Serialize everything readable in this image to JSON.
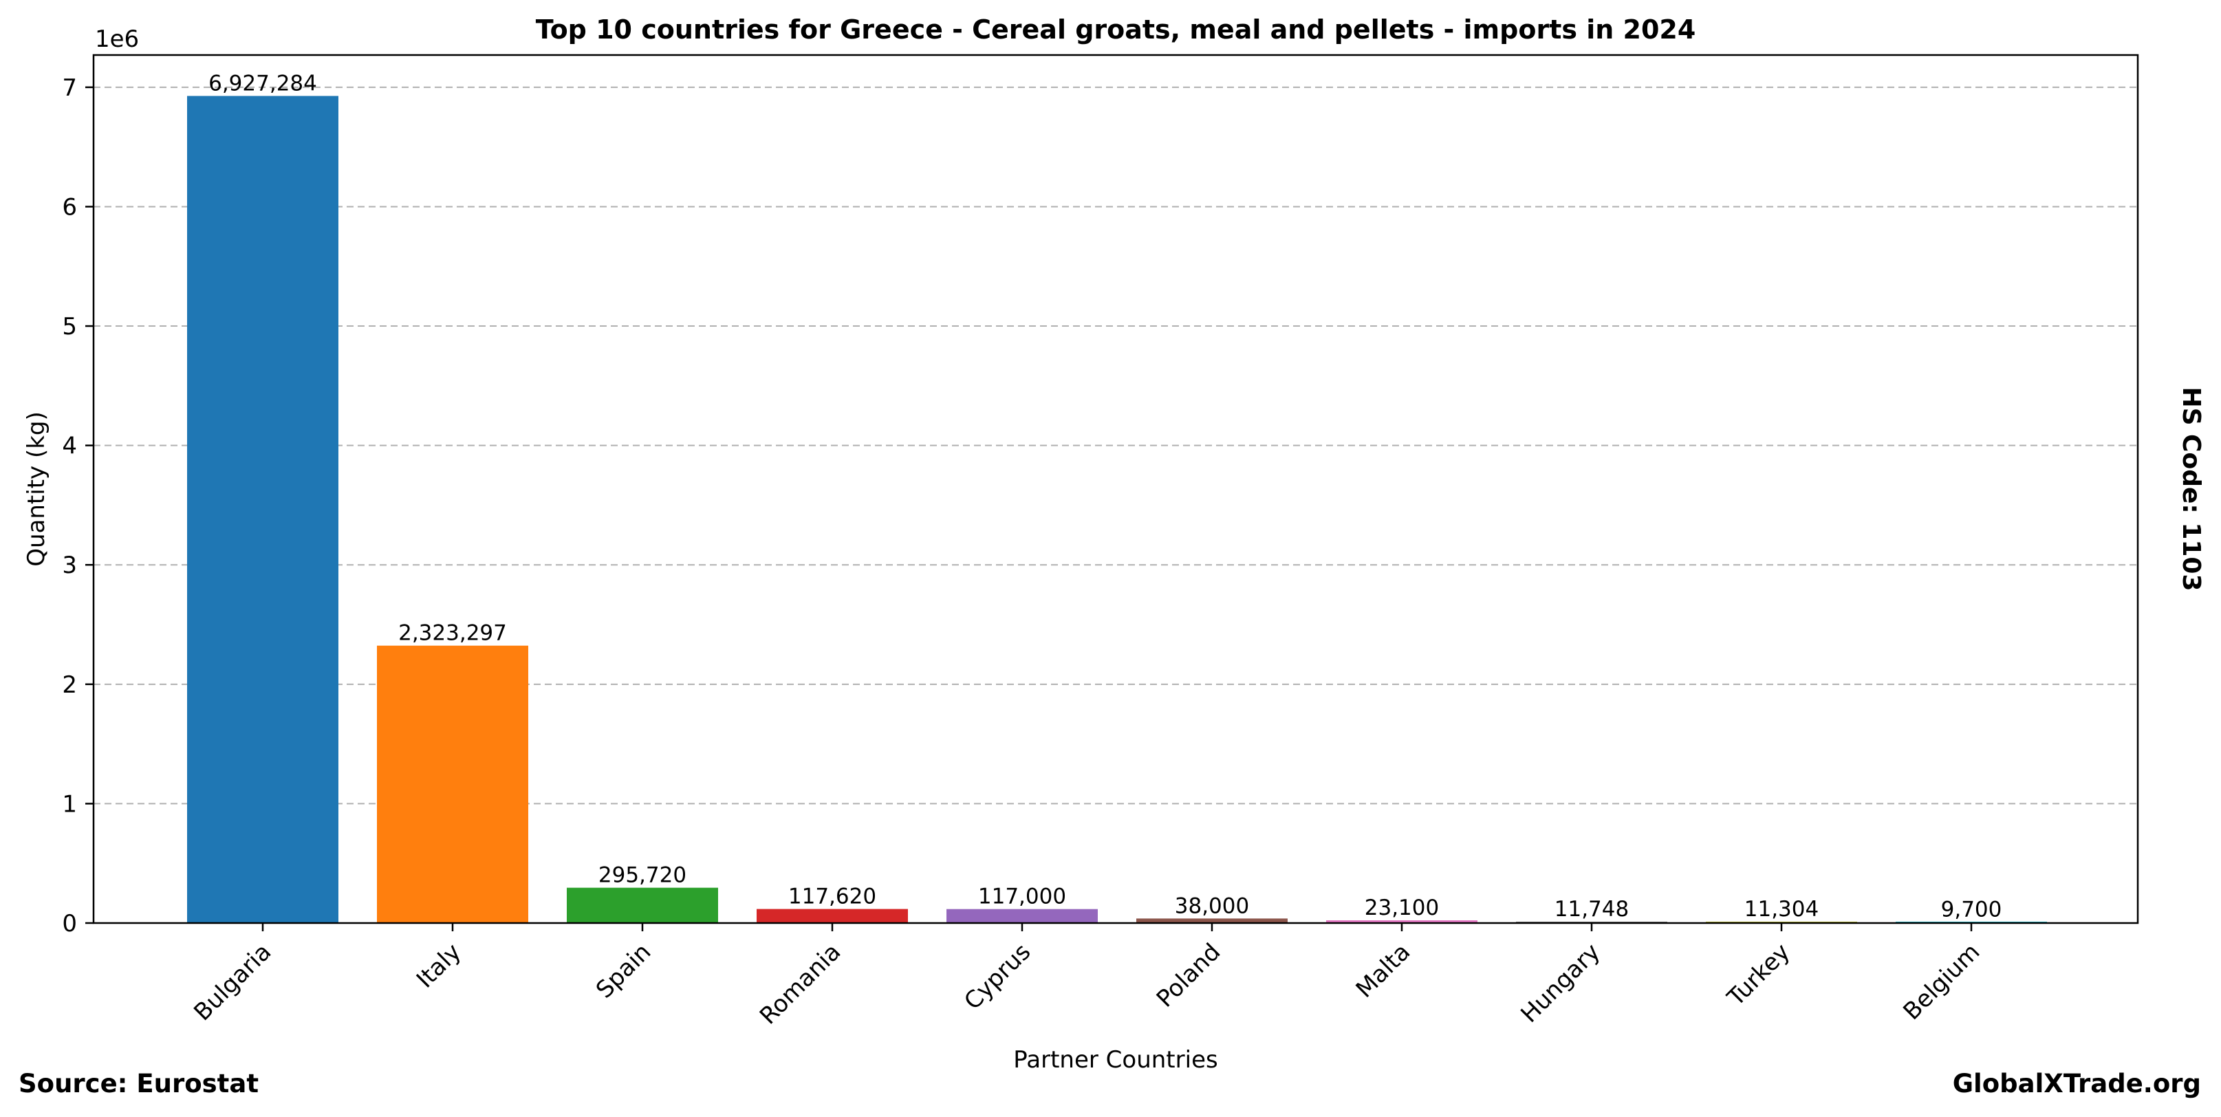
{
  "chart_data": {
    "type": "bar",
    "title": "Top 10 countries for Greece - Cereal groats, meal and pellets - imports in 2024",
    "xlabel": "Partner Countries",
    "ylabel": "Quantity (kg)",
    "y_multiplier_label": "1e6",
    "ylim": [
      0,
      7.27
    ],
    "yticks": [
      0,
      1,
      2,
      3,
      4,
      5,
      6,
      7
    ],
    "ytick_labels": [
      "0",
      "1",
      "2",
      "3",
      "4",
      "5",
      "6",
      "7"
    ],
    "grid": true,
    "categories": [
      "Bulgaria",
      "Italy",
      "Spain",
      "Romania",
      "Cyprus",
      "Poland",
      "Malta",
      "Hungary",
      "Turkey",
      "Belgium"
    ],
    "values": [
      6927284,
      2323297,
      295720,
      117620,
      117000,
      38000,
      23100,
      11748,
      11304,
      9700
    ],
    "value_labels": [
      "6,927,284",
      "2,323,297",
      "295,720",
      "117,620",
      "117,000",
      "38,000",
      "23,100",
      "11,748",
      "11,304",
      "9,700"
    ],
    "colors": [
      "#1f77b4",
      "#ff7f0e",
      "#2ca02c",
      "#d62728",
      "#9467bd",
      "#8c564b",
      "#e377c2",
      "#7f7f7f",
      "#bcbd22",
      "#17becf"
    ]
  },
  "annotations": {
    "hs_code": "HS Code: 1103",
    "source": "Source: Eurostat",
    "brand": "GlobalXTrade.org"
  }
}
